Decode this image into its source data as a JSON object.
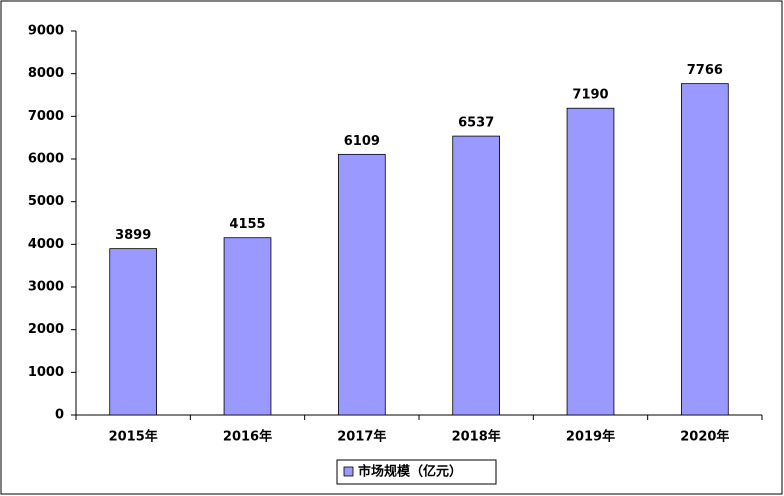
{
  "chart_data": {
    "type": "bar",
    "categories": [
      "2015年",
      "2016年",
      "2017年",
      "2018年",
      "2019年",
      "2020年"
    ],
    "series": [
      {
        "name": "市场规模（亿元）",
        "color": "#9999ff",
        "values": [
          3899,
          4155,
          6109,
          6537,
          7190,
          7766
        ]
      }
    ],
    "ylim": [
      0,
      9000
    ],
    "yticks": [
      0,
      1000,
      2000,
      3000,
      4000,
      5000,
      6000,
      7000,
      8000,
      9000
    ],
    "grid": false,
    "legend": "bottom",
    "data_labels": true
  }
}
